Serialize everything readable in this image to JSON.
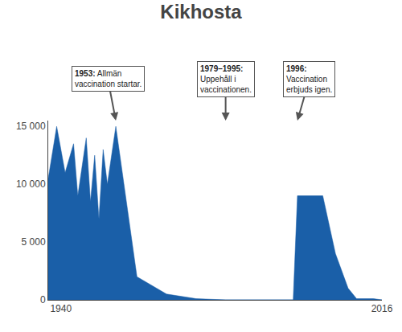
{
  "chart_data": {
    "type": "area",
    "title": "Kikhosta",
    "x": [
      1937,
      1939,
      1941,
      1943,
      1944,
      1946,
      1947,
      1948,
      1949,
      1950,
      1951,
      1953,
      1958,
      1965,
      1972,
      1979,
      1979,
      1995,
      1996,
      2002,
      2005,
      2008,
      2010,
      2014,
      2016,
      2016,
      1937
    ],
    "values": [
      10500,
      15000,
      11000,
      13500,
      9000,
      14000,
      8500,
      12500,
      7000,
      13000,
      10000,
      15000,
      2000,
      500,
      100,
      0,
      0,
      0,
      9000,
      9000,
      4000,
      1000,
      100,
      100,
      0,
      0,
      0
    ],
    "color": "#1a5fa8",
    "xlim": [
      1937,
      2016
    ],
    "xticks": [
      1940,
      2016
    ],
    "ylim": [
      0,
      15500
    ],
    "yticks": [
      0,
      {
        "value": 5000,
        "label": "5 000"
      },
      {
        "value": 10000,
        "label": "10 000"
      },
      {
        "value": 15000,
        "label": "15 000"
      }
    ],
    "grid": false,
    "annotations": [
      {
        "x": 1953,
        "text": "1953: Allmän\nvaccination startar."
      },
      {
        "x": 1979,
        "text": "1979–1995:\nUppehåll i\nvaccinationen."
      },
      {
        "x": 1996,
        "text": "1996:\nVaccination\nerbjuds igen."
      }
    ]
  }
}
